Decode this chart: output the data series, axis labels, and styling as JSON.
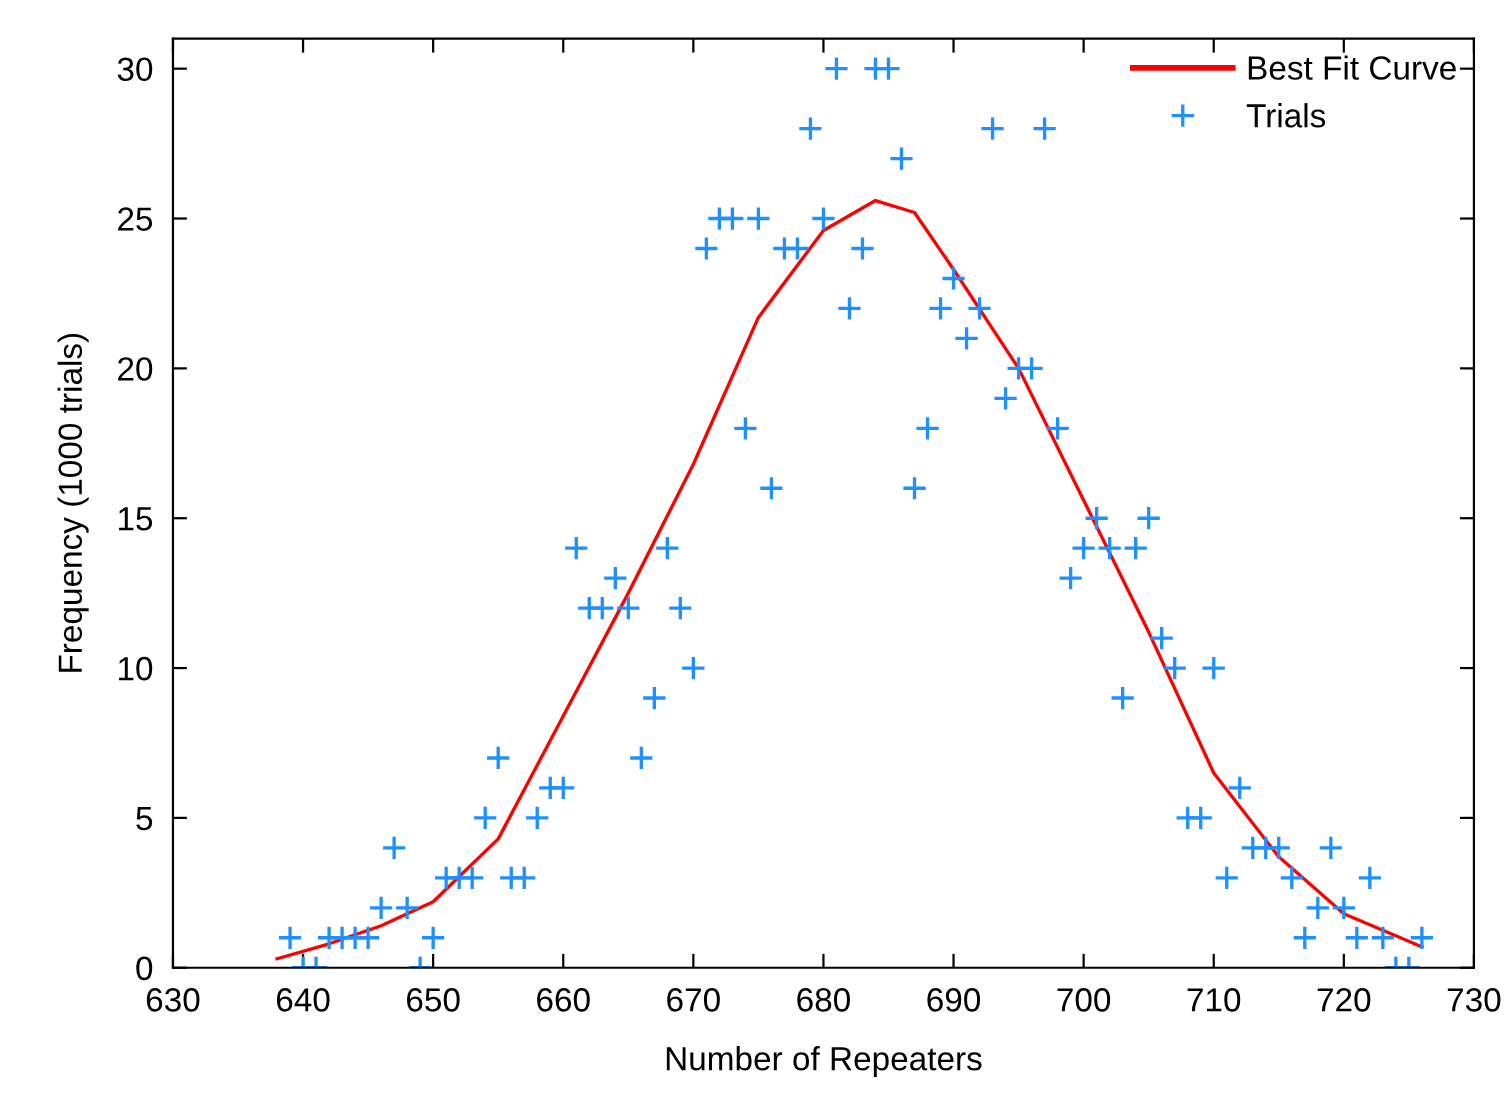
{
  "chart_data": {
    "type": "scatter",
    "xlabel": "Number of Repeaters",
    "ylabel": "Frequency (1000 trials)",
    "xlim": [
      630,
      730
    ],
    "xticks": [
      630,
      640,
      650,
      660,
      670,
      680,
      690,
      700,
      710,
      720,
      730
    ],
    "ylim": [
      0,
      31
    ],
    "yticks": [
      0,
      5,
      10,
      15,
      20,
      25,
      30
    ],
    "grid": false,
    "legend": "top right",
    "series": [
      {
        "name": "Best Fit Curve",
        "type": "line",
        "color": "#ff0000",
        "marker": "none",
        "line_style": "solid",
        "x": [
          638,
          642,
          646,
          650,
          655,
          660,
          665,
          670,
          675,
          680,
          684,
          687,
          690,
          695,
          700,
          705,
          710,
          715,
          720,
          726
        ],
        "values": [
          0.3,
          0.8,
          1.4,
          2.2,
          4.3,
          8.4,
          12.5,
          16.8,
          21.7,
          24.6,
          25.6,
          25.2,
          23.3,
          20.0,
          15.6,
          11.2,
          6.5,
          3.7,
          1.8,
          0.7
        ]
      },
      {
        "name": "Trials",
        "color": "#1e90ff",
        "marker": "cross",
        "x": [
          639,
          640,
          641,
          642,
          643,
          644,
          645,
          646,
          647,
          648,
          649,
          650,
          651,
          652,
          653,
          654,
          655,
          656,
          657,
          658,
          659,
          660,
          661,
          662,
          663,
          664,
          665,
          666,
          667,
          668,
          669,
          670,
          671,
          672,
          673,
          674,
          675,
          676,
          677,
          678,
          679,
          680,
          681,
          682,
          683,
          684,
          685,
          686,
          687,
          688,
          689,
          690,
          691,
          692,
          693,
          694,
          695,
          696,
          697,
          698,
          699,
          700,
          701,
          702,
          703,
          704,
          705,
          706,
          707,
          708,
          709,
          710,
          711,
          712,
          713,
          714,
          715,
          716,
          717,
          718,
          719,
          720,
          721,
          722,
          723,
          724,
          725,
          726
        ],
        "values": [
          1,
          0,
          0,
          1,
          1,
          1,
          1,
          2,
          4,
          2,
          0,
          1,
          3,
          3,
          3,
          5,
          7,
          3,
          3,
          5,
          6,
          6,
          14,
          12,
          12,
          13,
          12,
          7,
          9,
          14,
          12,
          10,
          24,
          25,
          25,
          18,
          25,
          16,
          24,
          24,
          28,
          25,
          30,
          22,
          24,
          30,
          30,
          27,
          16,
          18,
          22,
          23,
          21,
          22,
          28,
          19,
          20,
          20,
          28,
          18,
          13,
          14,
          15,
          14,
          9,
          14,
          15,
          11,
          10,
          5,
          5,
          10,
          3,
          6,
          4,
          4,
          4,
          3,
          1,
          2,
          4,
          2,
          1,
          3,
          1,
          0,
          0,
          1
        ]
      }
    ]
  }
}
